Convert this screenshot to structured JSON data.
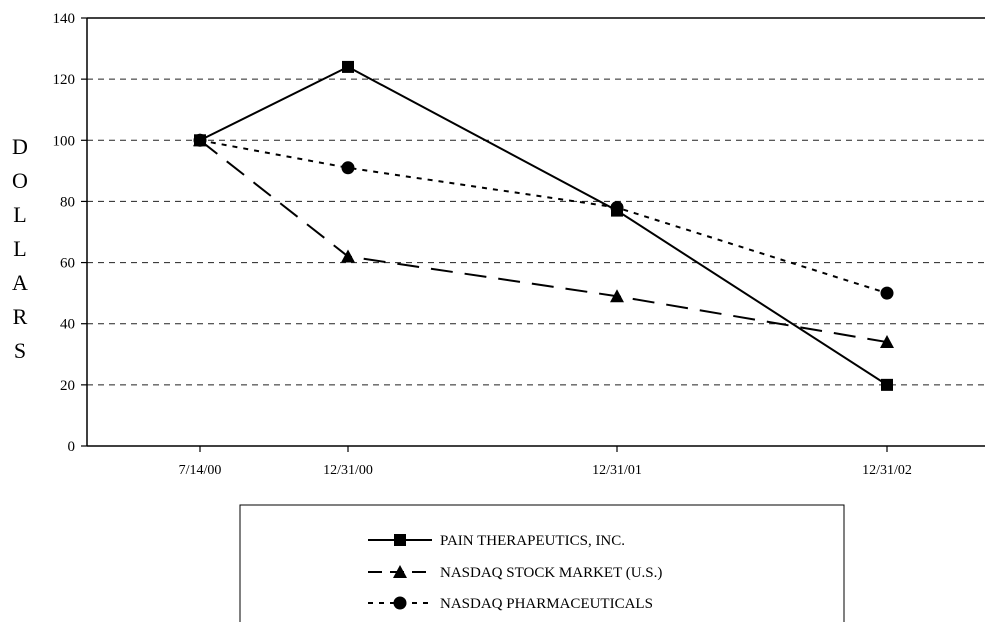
{
  "chart_data": {
    "type": "line",
    "title": "",
    "xlabel": "",
    "ylabel": "DOLLARS",
    "categories": [
      "7/14/00",
      "12/31/00",
      "12/31/01",
      "12/31/02"
    ],
    "ylim": [
      0,
      140
    ],
    "yticks": [
      0,
      20,
      40,
      60,
      80,
      100,
      120,
      140
    ],
    "grid": "horizontal dashed",
    "legend_position": "bottom",
    "series": [
      {
        "name": "PAIN THERAPEUTICS, INC.",
        "values": [
          100,
          124,
          77,
          20
        ],
        "line_style": "solid",
        "marker": "square"
      },
      {
        "name": "NASDAQ STOCK MARKET (U.S.)",
        "values": [
          100,
          62,
          49,
          34
        ],
        "line_style": "dashed",
        "marker": "triangle"
      },
      {
        "name": "NASDAQ PHARMACEUTICALS",
        "values": [
          100,
          91,
          78,
          50
        ],
        "line_style": "dotted",
        "marker": "circle"
      }
    ]
  }
}
